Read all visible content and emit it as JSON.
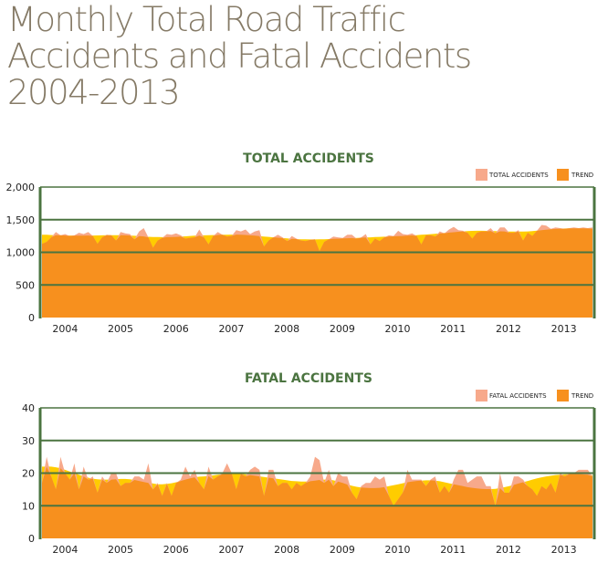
{
  "title": "Monthly Total Road Traffic\nAccidents and Fatal Accidents\n2004-2013",
  "colors": {
    "data": "#f7a98b",
    "trend": "#f7901e",
    "trend_above": "#ffcc00",
    "grid": "#4b7440",
    "title": "#857a66"
  },
  "chart_data": [
    {
      "type": "area",
      "title": "TOTAL ACCIDENTS",
      "legend": [
        "TOTAL ACCIDENTS",
        "TREND"
      ],
      "legend_position": "top-right",
      "x_ticks": [
        "2004",
        "2005",
        "2006",
        "2007",
        "2008",
        "2009",
        "2010",
        "2011",
        "2012",
        "2013"
      ],
      "y_ticks": [
        "0",
        "500",
        "1,000",
        "1,500",
        "2,000"
      ],
      "ylim": [
        0,
        2000
      ],
      "grid": true,
      "series": [
        {
          "name": "TOTAL ACCIDENTS",
          "values": [
            1130,
            1160,
            1230,
            1310,
            1260,
            1280,
            1250,
            1260,
            1300,
            1280,
            1310,
            1250,
            1130,
            1230,
            1270,
            1260,
            1180,
            1310,
            1290,
            1280,
            1200,
            1320,
            1370,
            1230,
            1070,
            1180,
            1220,
            1280,
            1270,
            1290,
            1260,
            1210,
            1220,
            1230,
            1350,
            1230,
            1120,
            1250,
            1310,
            1270,
            1240,
            1250,
            1340,
            1320,
            1350,
            1280,
            1320,
            1340,
            1090,
            1180,
            1230,
            1270,
            1230,
            1170,
            1250,
            1210,
            1180,
            1170,
            1190,
            1200,
            1020,
            1160,
            1200,
            1240,
            1230,
            1220,
            1270,
            1270,
            1210,
            1230,
            1280,
            1120,
            1210,
            1170,
            1230,
            1260,
            1250,
            1330,
            1280,
            1270,
            1290,
            1250,
            1120,
            1260,
            1260,
            1240,
            1320,
            1290,
            1350,
            1390,
            1340,
            1330,
            1300,
            1210,
            1300,
            1320,
            1320,
            1370,
            1290,
            1380,
            1380,
            1300,
            1300,
            1340,
            1180,
            1300,
            1250,
            1330,
            1420,
            1410,
            1360,
            1380,
            1370,
            1360,
            1370,
            1380,
            1370,
            1380,
            1370,
            1380
          ]
        },
        {
          "name": "TREND",
          "values": [
            1270,
            1268,
            1265,
            1262,
            1260,
            1258,
            1257,
            1256,
            1256,
            1256,
            1257,
            1258,
            1259,
            1260,
            1261,
            1262,
            1262,
            1262,
            1260,
            1257,
            1253,
            1248,
            1243,
            1238,
            1235,
            1233,
            1232,
            1232,
            1233,
            1236,
            1240,
            1245,
            1250,
            1255,
            1258,
            1260,
            1262,
            1264,
            1266,
            1268,
            1270,
            1272,
            1272,
            1270,
            1266,
            1260,
            1254,
            1248,
            1242,
            1236,
            1230,
            1224,
            1218,
            1212,
            1207,
            1203,
            1200,
            1198,
            1197,
            1197,
            1198,
            1200,
            1203,
            1206,
            1209,
            1212,
            1215,
            1218,
            1221,
            1224,
            1227,
            1230,
            1233,
            1236,
            1239,
            1242,
            1245,
            1248,
            1251,
            1255,
            1259,
            1263,
            1268,
            1273,
            1278,
            1284,
            1290,
            1296,
            1302,
            1308,
            1314,
            1320,
            1325,
            1328,
            1330,
            1330,
            1329,
            1327,
            1325,
            1322,
            1320,
            1318,
            1317,
            1317,
            1318,
            1320,
            1325,
            1332,
            1340,
            1347,
            1353,
            1358,
            1362,
            1365,
            1367,
            1368,
            1368,
            1367,
            1365,
            1362
          ]
        }
      ]
    },
    {
      "type": "area",
      "title": "FATAL ACCIDENTS",
      "legend": [
        "FATAL ACCIDENTS",
        "TREND"
      ],
      "legend_position": "top-right",
      "x_ticks": [
        "2004",
        "2005",
        "2006",
        "2007",
        "2008",
        "2009",
        "2010",
        "2011",
        "2012",
        "2013"
      ],
      "y_ticks": [
        "0",
        "10",
        "20",
        "30",
        "40"
      ],
      "ylim": [
        0,
        40
      ],
      "grid": true,
      "series": [
        {
          "name": "FATAL ACCIDENTS",
          "values": [
            17,
            25,
            19,
            15,
            25,
            20,
            18,
            23,
            15,
            22,
            18,
            19,
            14,
            19,
            17,
            20,
            20,
            16,
            17,
            17,
            19,
            19,
            18,
            23,
            15,
            17,
            13,
            17,
            13,
            17,
            18,
            22,
            19,
            21,
            17,
            15,
            22,
            18,
            19,
            20,
            23,
            20,
            15,
            20,
            19,
            21,
            22,
            21,
            13,
            21,
            21,
            16,
            17,
            17,
            15,
            17,
            16,
            17,
            19,
            25,
            24,
            17,
            21,
            16,
            20,
            19,
            19,
            14,
            12,
            16,
            17,
            17,
            19,
            18,
            19,
            13,
            10,
            12,
            14,
            21,
            18,
            18,
            18,
            16,
            18,
            19,
            14,
            16,
            14,
            18,
            21,
            21,
            17,
            18,
            19,
            19,
            16,
            16,
            10,
            20,
            14,
            14,
            19,
            19,
            18,
            16,
            15,
            13,
            16,
            15,
            17,
            14,
            20,
            19,
            20,
            20,
            21,
            21,
            21,
            19
          ]
        },
        {
          "name": "TREND",
          "values": [
            22,
            22,
            22,
            21.8,
            21.5,
            21,
            20.5,
            20,
            19.5,
            19,
            18.6,
            18.3,
            18.1,
            18,
            18,
            18,
            18.1,
            18.2,
            18.2,
            18.1,
            17.9,
            17.6,
            17.3,
            17,
            16.8,
            16.6,
            16.6,
            16.7,
            16.9,
            17.2,
            17.6,
            18,
            18.4,
            18.7,
            18.9,
            19,
            19.1,
            19.3,
            19.5,
            19.7,
            19.8,
            19.9,
            19.9,
            19.8,
            19.6,
            19.4,
            19.2,
            19,
            18.8,
            18.6,
            18.4,
            18.2,
            18,
            17.8,
            17.6,
            17.5,
            17.4,
            17.4,
            17.5,
            17.7,
            17.9,
            18,
            18,
            17.8,
            17.4,
            17,
            16.5,
            16.1,
            15.8,
            15.6,
            15.5,
            15.4,
            15.4,
            15.5,
            15.7,
            16,
            16.3,
            16.6,
            16.9,
            17.2,
            17.4,
            17.6,
            17.7,
            17.8,
            17.8,
            17.7,
            17.5,
            17.2,
            16.9,
            16.6,
            16.3,
            16,
            15.7,
            15.5,
            15.3,
            15.2,
            15.1,
            15.1,
            15.2,
            15.4,
            15.7,
            16,
            16.4,
            16.8,
            17.2,
            17.6,
            18,
            18.4,
            18.7,
            19,
            19.2,
            19.4,
            19.5,
            19.6,
            19.7,
            19.7,
            19.7,
            19.6,
            19.5,
            19.4
          ]
        }
      ]
    }
  ]
}
